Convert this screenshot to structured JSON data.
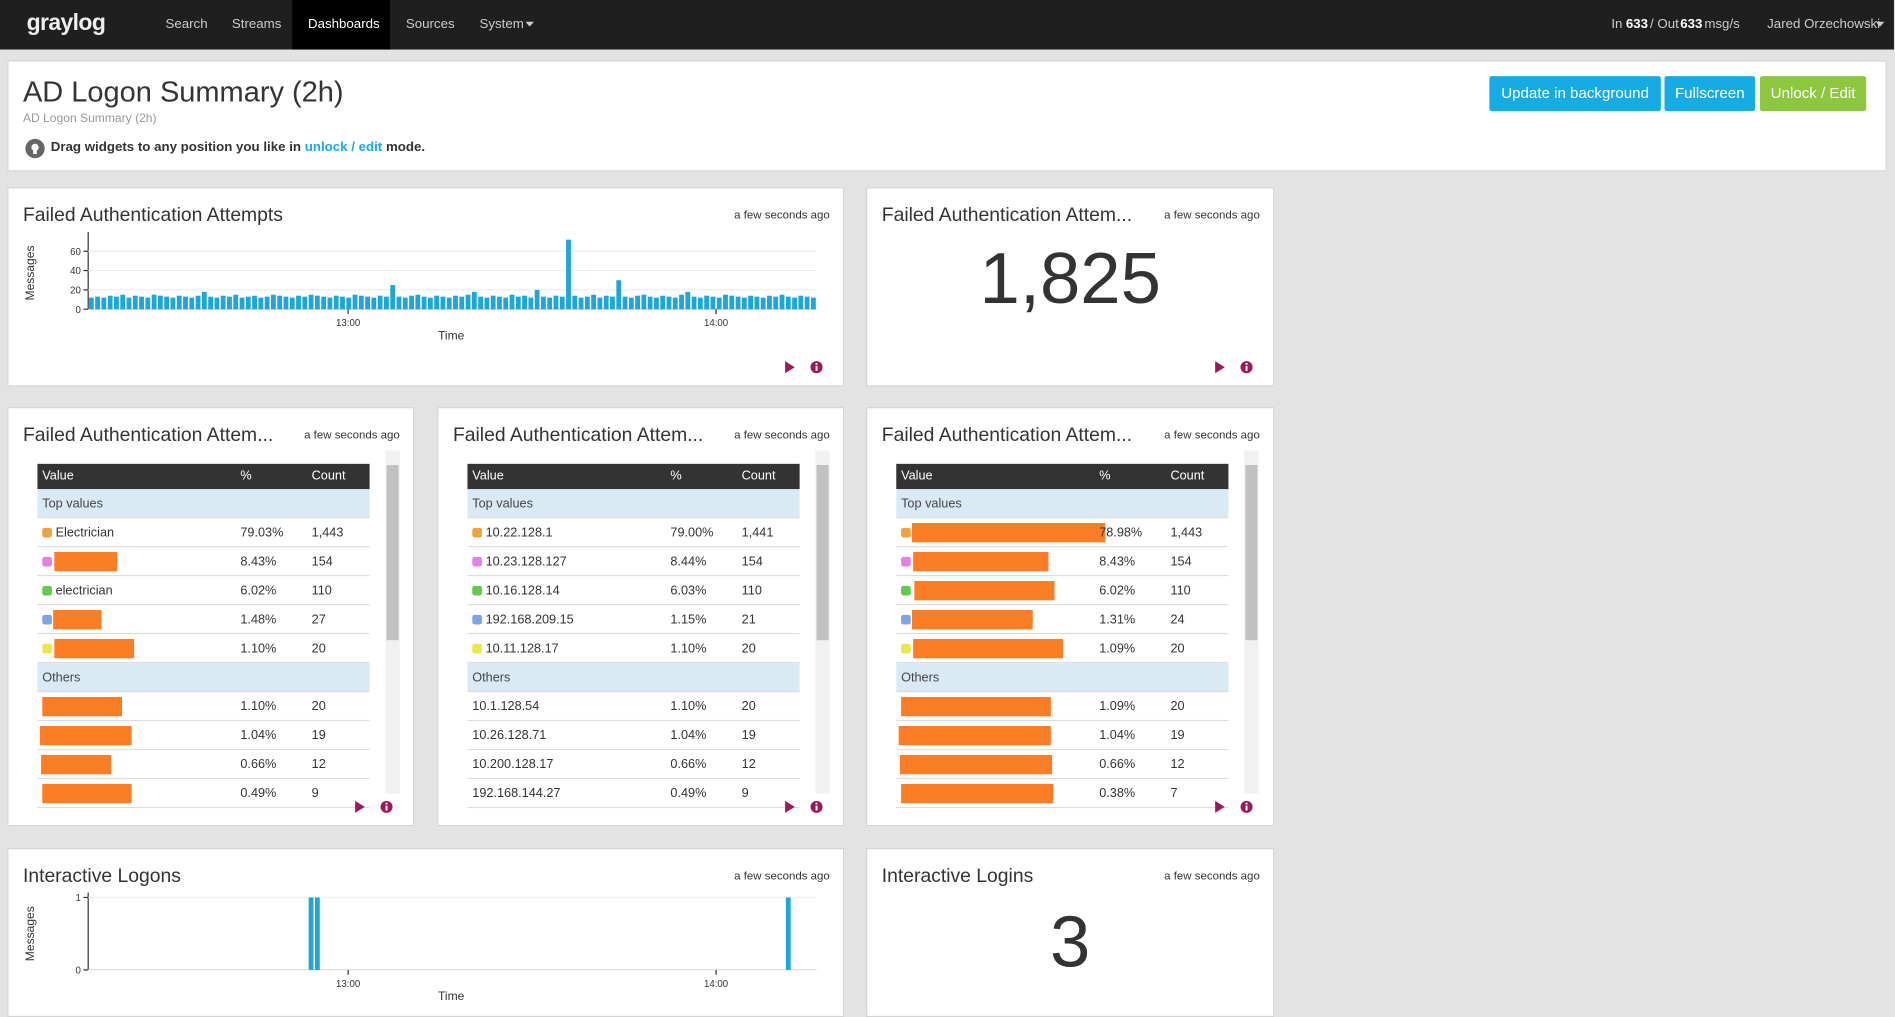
{
  "navbar": {
    "brand": "graylog",
    "links": [
      "Search",
      "Streams",
      "Dashboards",
      "Sources",
      "System"
    ],
    "throughput": [
      "In",
      "633",
      "/ Out",
      "633",
      "msg/s"
    ],
    "user": "Jared Orzechowski"
  },
  "header": {
    "title": "AD Logon Summary (2h)",
    "subtitle": "AD Logon Summary (2h)",
    "hint_prefix": "Drag widgets to any position you like in",
    "hint_link": "unlock / edit",
    "hint_suffix": "mode.",
    "buttons": [
      "Update in background",
      "Fullscreen",
      "Unlock / Edit"
    ]
  },
  "widgets": [
    {
      "type": "histogram",
      "title": "Failed Authentication Attempts",
      "updated": "a few seconds ago",
      "chart_data": {
        "type": "bar",
        "y_label": "Messages",
        "x_label": "Time",
        "color": "#1ea7d6",
        "ylim": [
          0,
          75
        ],
        "yticks": [
          0,
          20,
          40,
          60
        ],
        "xlim": [
          0,
          116
        ],
        "xticks": [
          {
            "value": 41.4,
            "label": "13:00"
          },
          {
            "value": 100,
            "label": "14:00"
          }
        ],
        "values": [
          12,
          13,
          12,
          14,
          13,
          15,
          12,
          14,
          13,
          12,
          15,
          14,
          13,
          12,
          14,
          13,
          12,
          14,
          18,
          13,
          12,
          14,
          13,
          15,
          12,
          13,
          14,
          12,
          13,
          15,
          14,
          13,
          12,
          14,
          13,
          15,
          14,
          13,
          12,
          14,
          13,
          12,
          15,
          14,
          13,
          12,
          14,
          13,
          25,
          13,
          12,
          14,
          15,
          13,
          12,
          14,
          13,
          12,
          14,
          13,
          15,
          18,
          13,
          12,
          14,
          13,
          12,
          15,
          13,
          14,
          12,
          20,
          13,
          12,
          14,
          13,
          72,
          14,
          12,
          13,
          15,
          12,
          14,
          13,
          30,
          13,
          12,
          14,
          15,
          13,
          12,
          14,
          13,
          12,
          15,
          18,
          13,
          12,
          14,
          13,
          12,
          15,
          14,
          13,
          12,
          14,
          13,
          12,
          14,
          13,
          15,
          13,
          12,
          14,
          13,
          12
        ]
      }
    },
    {
      "type": "count",
      "title": "Failed Authentication Attem...",
      "updated": "a few seconds ago",
      "value": "1,825"
    },
    {
      "type": "table",
      "title": "Failed Authentication Attem...",
      "updated": "a few seconds ago",
      "table": {
        "headers": [
          "Value",
          "%",
          "Count"
        ],
        "top_label": "Top values",
        "top_rows": [
          {
            "color": "#f0a33d",
            "cells": [
              "Electrician",
              "79.03%",
              "1,443"
            ]
          },
          {
            "color": "#e67fe6",
            "cells": [
              null,
              "8.43%",
              "154"
            ]
          },
          {
            "color": "#64c94f",
            "cells": [
              "electrician",
              "6.02%",
              "110"
            ]
          },
          {
            "color": "#7ea4e8",
            "cells": [
              null,
              "1.48%",
              "27"
            ]
          },
          {
            "color": "#e8e84a",
            "cells": [
              null,
              "1.10%",
              "20"
            ]
          }
        ],
        "others_label": "Others",
        "other_rows": [
          [
            null,
            "1.10%",
            "20"
          ],
          [
            null,
            "1.04%",
            "19"
          ],
          [
            null,
            "0.66%",
            "12"
          ],
          [
            null,
            "0.49%",
            "9"
          ]
        ]
      }
    },
    {
      "type": "table",
      "title": "Failed Authentication Attem...",
      "updated": "a few seconds ago",
      "table": {
        "headers": [
          "Value",
          "%",
          "Count"
        ],
        "top_label": "Top values",
        "top_rows": [
          {
            "color": "#f0a33d",
            "cells": [
              "10.22.128.1",
              "79.00%",
              "1,441"
            ]
          },
          {
            "color": "#e67fe6",
            "cells": [
              "10.23.128.127",
              "8.44%",
              "154"
            ]
          },
          {
            "color": "#64c94f",
            "cells": [
              "10.16.128.14",
              "6.03%",
              "110"
            ]
          },
          {
            "color": "#7ea4e8",
            "cells": [
              "192.168.209.15",
              "1.15%",
              "21"
            ]
          },
          {
            "color": "#e8e84a",
            "cells": [
              "10.11.128.17",
              "1.10%",
              "20"
            ]
          }
        ],
        "others_label": "Others",
        "other_rows": [
          [
            "10.1.128.54",
            "1.10%",
            "20"
          ],
          [
            "10.26.128.71",
            "1.04%",
            "19"
          ],
          [
            "10.200.128.17",
            "0.66%",
            "12"
          ],
          [
            "192.168.144.27",
            "0.49%",
            "9"
          ]
        ]
      }
    },
    {
      "type": "table",
      "title": "Failed Authentication Attem...",
      "updated": "a few seconds ago",
      "table": {
        "headers": [
          "Value",
          "%",
          "Count"
        ],
        "top_label": "Top values",
        "top_rows": [
          {
            "color": "#f0a33d",
            "cells": [
              null,
              "78.98%",
              "1,443"
            ]
          },
          {
            "color": "#e67fe6",
            "cells": [
              null,
              "8.43%",
              "154"
            ]
          },
          {
            "color": "#64c94f",
            "cells": [
              null,
              "6.02%",
              "110"
            ]
          },
          {
            "color": "#7ea4e8",
            "cells": [
              null,
              "1.31%",
              "24"
            ]
          },
          {
            "color": "#e8e84a",
            "cells": [
              null,
              "1.09%",
              "20"
            ]
          }
        ],
        "others_label": "Others",
        "other_rows": [
          [
            null,
            "1.09%",
            "20"
          ],
          [
            null,
            "1.04%",
            "19"
          ],
          [
            null,
            "0.66%",
            "12"
          ],
          [
            null,
            "0.38%",
            "7"
          ]
        ]
      }
    },
    {
      "type": "histogram",
      "title": "Interactive Logons",
      "updated": "a few seconds ago",
      "chart_data": {
        "type": "bar",
        "y_label": "Messages",
        "x_label": "Time",
        "color": "#1ea7d6",
        "ylim": [
          0,
          1
        ],
        "yticks": [
          0,
          1
        ],
        "xlim": [
          0,
          116
        ],
        "xticks": [
          {
            "value": 41.4,
            "label": "13:00"
          },
          {
            "value": 100,
            "label": "14:00"
          }
        ],
        "x": [
          35,
          36,
          111
        ],
        "values": [
          1,
          1,
          1
        ]
      }
    },
    {
      "type": "count",
      "title": "Interactive Logins",
      "updated": "a few seconds ago",
      "value": "3"
    }
  ]
}
